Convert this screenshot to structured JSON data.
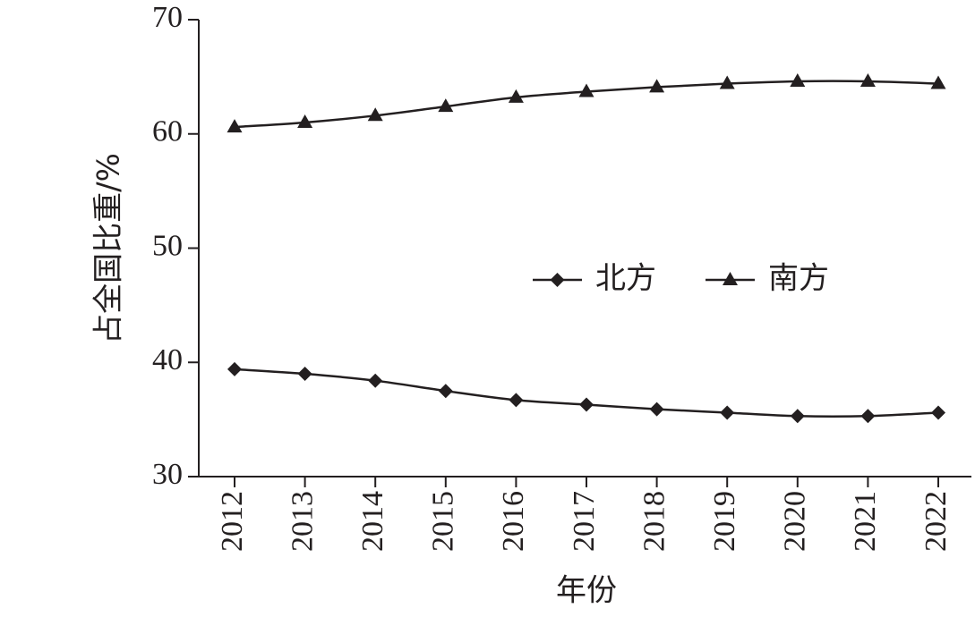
{
  "chart_data": {
    "type": "line",
    "xlabel": "年份",
    "ylabel": "占全国比重/%",
    "categories": [
      "2012",
      "2013",
      "2014",
      "2015",
      "2016",
      "2017",
      "2018",
      "2019",
      "2020",
      "2021",
      "2022"
    ],
    "series": [
      {
        "name": "北方",
        "color": "#231f20",
        "marker": "diamond",
        "values": [
          39.4,
          39.0,
          38.4,
          37.5,
          36.7,
          36.3,
          35.9,
          35.6,
          35.3,
          35.3,
          35.6
        ]
      },
      {
        "name": "南方",
        "color": "#231f20",
        "marker": "triangle",
        "values": [
          60.6,
          61.0,
          61.6,
          62.4,
          63.2,
          63.7,
          64.1,
          64.4,
          64.6,
          64.6,
          64.4
        ]
      }
    ],
    "ylim": [
      30,
      70
    ],
    "yticks": [
      30,
      40,
      50,
      60,
      70
    ],
    "smooth": true,
    "legend": "center"
  }
}
